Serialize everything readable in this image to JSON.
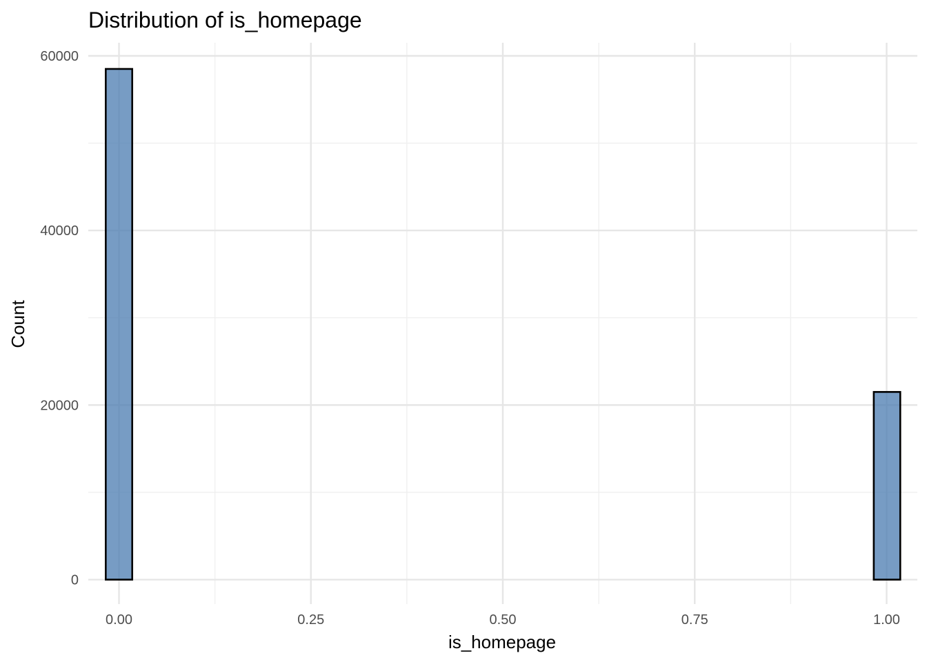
{
  "chart_data": {
    "type": "bar",
    "title": "Distribution of is_homepage",
    "xlabel": "is_homepage",
    "ylabel": "Count",
    "xlim": [
      -0.04,
      1.04
    ],
    "ylim": [
      -2800,
      61500
    ],
    "x_ticks": [
      "0.00",
      "0.25",
      "0.50",
      "0.75",
      "1.00"
    ],
    "x_tick_values": [
      0,
      0.25,
      0.5,
      0.75,
      1.0
    ],
    "y_ticks": [
      "0",
      "20000",
      "40000",
      "60000"
    ],
    "y_tick_values": [
      0,
      20000,
      40000,
      60000
    ],
    "bins": 30,
    "bin_width": 0.0345,
    "bars": [
      {
        "x": 0.0,
        "count": 58500
      },
      {
        "x": 1.0,
        "count": 21500
      }
    ],
    "fill_color": "#4a7bb0",
    "outline_color": "#000000",
    "grid": true,
    "legend": "none"
  }
}
